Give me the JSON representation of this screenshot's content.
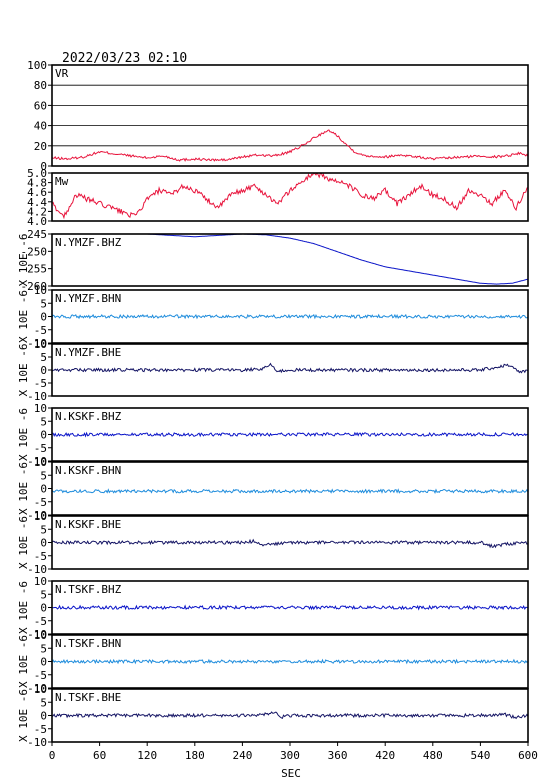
{
  "title": "2022/03/23 02:10",
  "x_axis": {
    "label": "SEC",
    "range": [
      0,
      600
    ],
    "ticks": [
      "0",
      "60",
      "120",
      "180",
      "240",
      "300",
      "360",
      "420",
      "480",
      "540",
      "600"
    ]
  },
  "chart_data": [
    {
      "type": "line",
      "panel": "VR",
      "label": "VR",
      "color": "#e8143c",
      "ylim": [
        0,
        100
      ],
      "yticks": [
        "100",
        "80",
        "60",
        "40",
        "20",
        "0"
      ],
      "grid": true,
      "x": [
        0,
        20,
        40,
        60,
        80,
        100,
        120,
        140,
        160,
        180,
        200,
        220,
        240,
        260,
        280,
        300,
        310,
        320,
        330,
        340,
        350,
        360,
        370,
        380,
        390,
        400,
        420,
        440,
        460,
        480,
        500,
        520,
        540,
        560,
        580,
        590,
        600
      ],
      "y": [
        8,
        7,
        9,
        14,
        12,
        10,
        8,
        10,
        6,
        7,
        6,
        6,
        9,
        11,
        10,
        14,
        18,
        22,
        28,
        32,
        35,
        30,
        22,
        15,
        11,
        10,
        9,
        11,
        9,
        7,
        8,
        9,
        10,
        9,
        11,
        13,
        10
      ]
    },
    {
      "type": "line",
      "panel": "Mw",
      "label": "Mw",
      "color": "#e8143c",
      "ylim": [
        3.9,
        5.0
      ],
      "yticks": [
        "5.0",
        "4.8",
        "4.6",
        "4.4",
        "4.2",
        "4.0"
      ],
      "grid": false,
      "x": [
        0,
        15,
        30,
        45,
        60,
        75,
        90,
        105,
        120,
        135,
        150,
        165,
        180,
        195,
        210,
        225,
        240,
        255,
        270,
        285,
        300,
        315,
        330,
        345,
        360,
        375,
        390,
        405,
        420,
        435,
        450,
        465,
        480,
        495,
        510,
        525,
        540,
        555,
        570,
        585,
        600
      ],
      "y": [
        4.3,
        4.0,
        4.5,
        4.4,
        4.3,
        4.2,
        4.1,
        4.0,
        4.4,
        4.6,
        4.5,
        4.7,
        4.6,
        4.4,
        4.2,
        4.5,
        4.6,
        4.7,
        4.5,
        4.3,
        4.6,
        4.8,
        5.0,
        4.9,
        4.8,
        4.7,
        4.5,
        4.4,
        4.6,
        4.3,
        4.5,
        4.7,
        4.5,
        4.4,
        4.2,
        4.6,
        4.5,
        4.3,
        4.6,
        4.2,
        4.7
      ]
    },
    {
      "type": "line",
      "panel": "N.YMZF.BHZ",
      "label": "N.YMZF.BHZ",
      "color": "#0a14c8",
      "ylabel": "X 10E -6",
      "ylim": [
        -261,
        -242
      ],
      "yticks": [
        "-245",
        "-250",
        "-255",
        "-260"
      ],
      "grid": false,
      "x": [
        0,
        30,
        60,
        90,
        120,
        150,
        180,
        210,
        240,
        270,
        300,
        330,
        360,
        390,
        420,
        450,
        480,
        510,
        540,
        560,
        580,
        600
      ],
      "y": [
        -242,
        -242,
        -242,
        -242,
        -242,
        -242.5,
        -243,
        -242.5,
        -242,
        -242.3,
        -243.5,
        -245.5,
        -248.5,
        -251.5,
        -254,
        -255.5,
        -257,
        -258.5,
        -260,
        -260.3,
        -260,
        -258.5
      ]
    },
    {
      "type": "line",
      "panel": "N.YMZF.BHN",
      "label": "N.YMZF.BHN",
      "color": "#1e8cdc",
      "ylabel": "X 10E -6",
      "ylim": [
        -10,
        10
      ],
      "yticks": [
        "10",
        "5",
        "0",
        "-5",
        "-10"
      ],
      "grid": false,
      "x": [
        0,
        60,
        120,
        180,
        240,
        300,
        360,
        420,
        480,
        540,
        600
      ],
      "y": [
        0,
        0,
        0,
        0,
        0,
        0,
        0,
        0,
        0,
        0,
        0
      ]
    },
    {
      "type": "line",
      "panel": "N.YMZF.BHE",
      "label": "N.YMZF.BHE",
      "color": "#141464",
      "ylabel": "X 10E -6",
      "ylim": [
        -10,
        10
      ],
      "yticks": [
        "10",
        "5",
        "0",
        "-5",
        "-10"
      ],
      "grid": false,
      "x": [
        0,
        60,
        120,
        180,
        240,
        265,
        275,
        285,
        300,
        360,
        420,
        480,
        540,
        560,
        575,
        590,
        600
      ],
      "y": [
        0,
        0,
        0,
        0,
        0,
        0.5,
        2,
        -0.5,
        0,
        0,
        0,
        0,
        0,
        1,
        2,
        -1,
        0
      ]
    },
    {
      "type": "line",
      "panel": "N.KSKF.BHZ",
      "label": "N.KSKF.BHZ",
      "color": "#0a14c8",
      "ylabel": "X 10E -6",
      "ylim": [
        -10,
        10
      ],
      "yticks": [
        "10",
        "5",
        "0",
        "-5",
        "-10"
      ],
      "grid": false,
      "x": [
        0,
        60,
        120,
        180,
        240,
        300,
        360,
        420,
        480,
        540,
        600
      ],
      "y": [
        0,
        0,
        0,
        0,
        0,
        0,
        0,
        0,
        0,
        0,
        0
      ]
    },
    {
      "type": "line",
      "panel": "N.KSKF.BHN",
      "label": "N.KSKF.BHN",
      "color": "#1e8cdc",
      "ylabel": "X 10E -6",
      "ylim": [
        -10,
        10
      ],
      "yticks": [
        "10",
        "5",
        "0",
        "-5",
        "-10"
      ],
      "grid": false,
      "x": [
        0,
        60,
        120,
        180,
        240,
        300,
        360,
        420,
        480,
        540,
        600
      ],
      "y": [
        -1,
        -1,
        -1,
        -1,
        -1,
        -1,
        -1,
        -1,
        -1,
        -1,
        -1
      ]
    },
    {
      "type": "line",
      "panel": "N.KSKF.BHE",
      "label": "N.KSKF.BHE",
      "color": "#141464",
      "ylabel": "X 10E -6",
      "ylim": [
        -10,
        10
      ],
      "yticks": [
        "10",
        "5",
        "0",
        "-5",
        "-10"
      ],
      "grid": false,
      "x": [
        0,
        60,
        120,
        180,
        240,
        255,
        265,
        280,
        300,
        360,
        420,
        480,
        540,
        550,
        560,
        575,
        600
      ],
      "y": [
        0,
        0,
        0,
        0,
        0,
        0.5,
        -1,
        -0.5,
        0,
        0,
        0,
        0,
        0,
        -1,
        -1.5,
        -0.5,
        0
      ]
    },
    {
      "type": "line",
      "panel": "N.TSKF.BHZ",
      "label": "N.TSKF.BHZ",
      "color": "#0a14c8",
      "ylabel": "X 10E -6",
      "ylim": [
        -10,
        10
      ],
      "yticks": [
        "10",
        "5",
        "0",
        "-5",
        "-10"
      ],
      "grid": false,
      "x": [
        0,
        60,
        120,
        180,
        240,
        300,
        360,
        420,
        480,
        540,
        600
      ],
      "y": [
        0,
        0,
        0,
        0,
        0,
        0,
        0,
        0,
        0,
        0,
        0
      ]
    },
    {
      "type": "line",
      "panel": "N.TSKF.BHN",
      "label": "N.TSKF.BHN",
      "color": "#1e8cdc",
      "ylabel": "X 10E -6",
      "ylim": [
        -10,
        10
      ],
      "yticks": [
        "10",
        "5",
        "0",
        "-5",
        "-10"
      ],
      "grid": false,
      "x": [
        0,
        60,
        120,
        180,
        240,
        300,
        360,
        420,
        480,
        540,
        600
      ],
      "y": [
        0,
        0,
        0,
        0,
        0,
        0,
        0,
        0,
        0,
        0,
        0
      ]
    },
    {
      "type": "line",
      "panel": "N.TSKF.BHE",
      "label": "N.TSKF.BHE",
      "color": "#141464",
      "ylabel": "X 10E -6",
      "ylim": [
        -10,
        10
      ],
      "yticks": [
        "10",
        "5",
        "0",
        "-5",
        "-10"
      ],
      "grid": false,
      "x": [
        0,
        60,
        120,
        180,
        240,
        270,
        280,
        290,
        300,
        360,
        420,
        480,
        540,
        570,
        585,
        600
      ],
      "y": [
        0,
        0,
        0,
        0,
        0,
        0.5,
        1.5,
        -0.5,
        0,
        0,
        0,
        0,
        0,
        0.5,
        -0.8,
        0
      ]
    }
  ]
}
